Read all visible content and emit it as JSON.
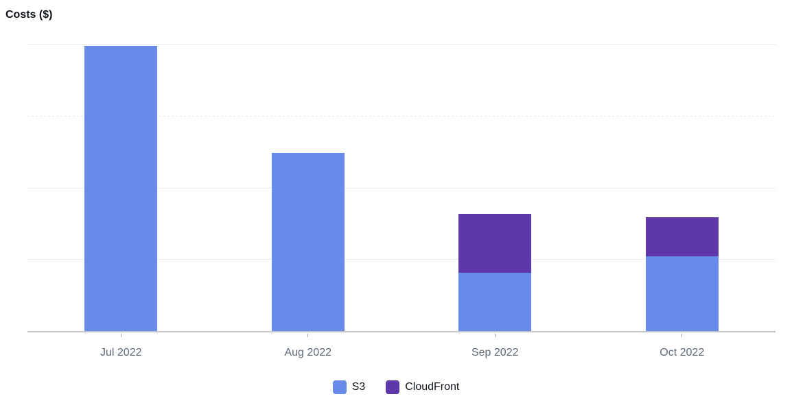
{
  "title": "Costs ($)",
  "chart_data": {
    "type": "bar",
    "stacked": true,
    "title": "Costs ($)",
    "xlabel": "",
    "ylabel": "",
    "categories": [
      "Jul 2022",
      "Aug 2022",
      "Sep 2022",
      "Oct 2022"
    ],
    "series": [
      {
        "name": "S3",
        "color": "#688AE8",
        "values": [
          99.3,
          62.0,
          20.2,
          26.1
        ]
      },
      {
        "name": "CloudFront",
        "color": "#5E37A8",
        "values": [
          0,
          0,
          20.7,
          13.5
        ]
      }
    ],
    "ylim": [
      0,
      100
    ],
    "y_tick_labels": [],
    "gridlines": [
      {
        "value": 100,
        "style": "solid"
      },
      {
        "value": 75,
        "style": "dashed"
      },
      {
        "value": 50,
        "style": "solid"
      },
      {
        "value": 25,
        "style": "solid"
      }
    ],
    "grid": true,
    "legend_position": "bottom"
  },
  "colors": {
    "title_text": "#0f141a",
    "axis_label_text": "#5f6b7a",
    "gridline": "#e9ebed",
    "axis_line": "#bfc4c9",
    "background": "#ffffff"
  }
}
